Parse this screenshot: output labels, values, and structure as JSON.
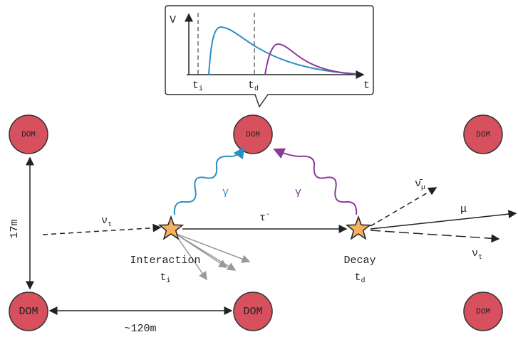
{
  "inset": {
    "y_label": "V",
    "x_label": "t",
    "ti": {
      "main": "t",
      "sub": "i"
    },
    "td": {
      "main": "t",
      "sub": "d"
    }
  },
  "doms": [
    "DOM",
    "DOM",
    "DOM",
    "DOM",
    "DOM",
    "DOM"
  ],
  "distances": {
    "vertical": "17m",
    "horizontal": "~120m"
  },
  "incoming": {
    "main": "ν",
    "sub": "τ"
  },
  "tau": {
    "main": "τ",
    "sup": "-"
  },
  "photons": [
    "γ",
    "γ"
  ],
  "interaction": {
    "label": "Interaction",
    "time": {
      "main": "t",
      "sub": "i"
    }
  },
  "decay": {
    "label": "Decay",
    "time": {
      "main": "t",
      "sub": "d"
    }
  },
  "products": {
    "antineutrino": {
      "main": "ν̄",
      "sub": "μ"
    },
    "muon": "μ",
    "neutrino": {
      "main": "ν",
      "sub": "τ"
    }
  }
}
